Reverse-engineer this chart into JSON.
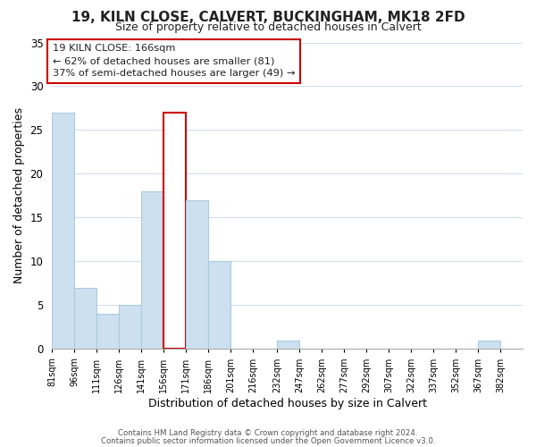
{
  "title": "19, KILN CLOSE, CALVERT, BUCKINGHAM, MK18 2FD",
  "subtitle": "Size of property relative to detached houses in Calvert",
  "xlabel": "Distribution of detached houses by size in Calvert",
  "ylabel": "Number of detached properties",
  "footer_line1": "Contains HM Land Registry data © Crown copyright and database right 2024.",
  "footer_line2": "Contains public sector information licensed under the Open Government Licence v3.0.",
  "annotation_line1": "19 KILN CLOSE: 166sqm",
  "annotation_line2": "← 62% of detached houses are smaller (81)",
  "annotation_line3": "37% of semi-detached houses are larger (49) →",
  "bins": [
    81,
    96,
    111,
    126,
    141,
    156,
    171,
    186,
    201,
    216,
    232,
    247,
    262,
    277,
    292,
    307,
    322,
    337,
    352,
    367,
    382
  ],
  "counts": [
    27,
    7,
    4,
    5,
    18,
    27,
    17,
    10,
    0,
    0,
    1,
    0,
    0,
    0,
    0,
    0,
    0,
    0,
    0,
    1
  ],
  "highlight_bin_index": 5,
  "bar_color": "#cce0f0",
  "highlight_color": "#ffffff",
  "highlight_edge_color": "#cc0000",
  "normal_edge_color": "#aaccdd",
  "ylim": [
    0,
    35
  ],
  "yticks": [
    0,
    5,
    10,
    15,
    20,
    25,
    30,
    35
  ],
  "background_color": "#ffffff",
  "grid_color": "#ccddee"
}
